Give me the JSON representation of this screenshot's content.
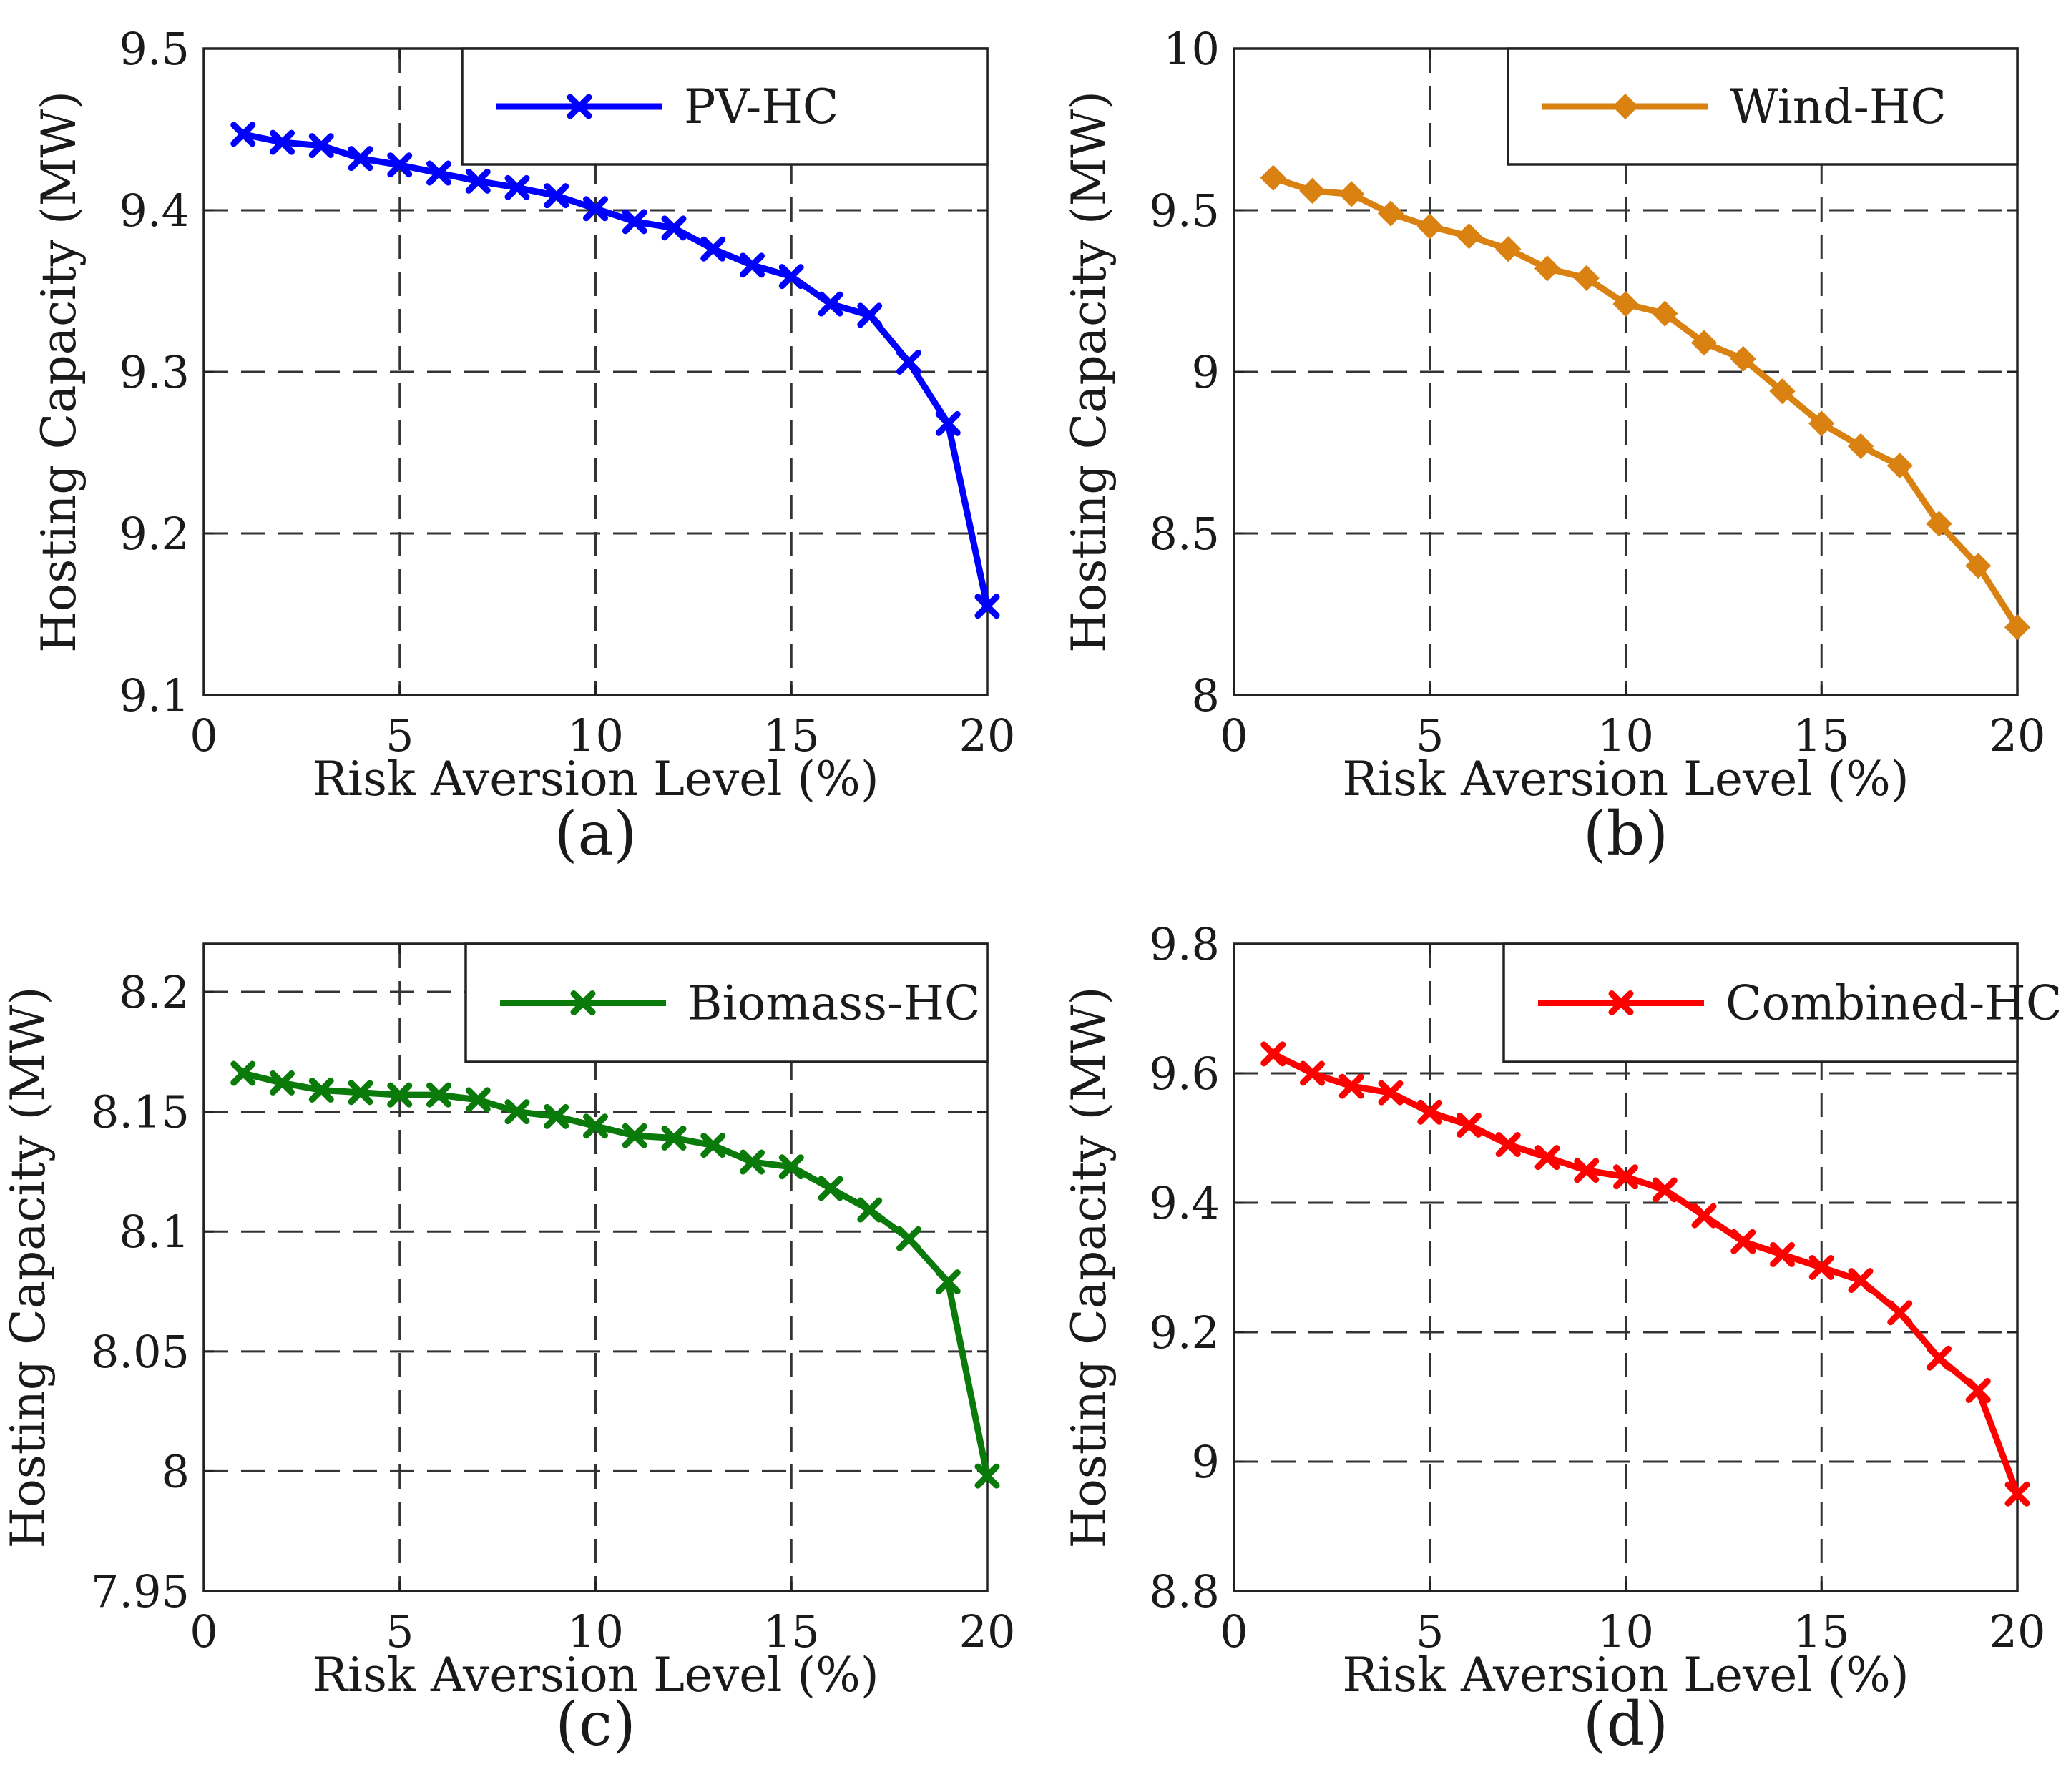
{
  "chart_data": [
    {
      "id": "a",
      "type": "line",
      "panel_label": "(a)",
      "xlabel": "Risk Aversion Level (%)",
      "ylabel": "Hosting Capacity (MW)",
      "xlim": [
        0,
        20
      ],
      "ylim": [
        9.1,
        9.5
      ],
      "xticks": [
        0,
        5,
        10,
        15,
        20
      ],
      "xtick_labels": [
        "0",
        "5",
        "10",
        "15",
        "20"
      ],
      "yticks": [
        9.1,
        9.2,
        9.3,
        9.4,
        9.5
      ],
      "ytick_labels": [
        "9.1",
        "9.2",
        "9.3",
        "9.4",
        "9.5"
      ],
      "grid": true,
      "legend_position": "top-right",
      "series": [
        {
          "name": "PV-HC",
          "color": "#0000ff",
          "marker": "x",
          "x": [
            1,
            2,
            3,
            4,
            5,
            6,
            7,
            8,
            9,
            10,
            11,
            12,
            13,
            14,
            15,
            16,
            17,
            18,
            19,
            20
          ],
          "y": [
            9.447,
            9.442,
            9.44,
            9.432,
            9.428,
            9.423,
            9.418,
            9.414,
            9.409,
            9.401,
            9.393,
            9.389,
            9.376,
            9.366,
            9.359,
            9.342,
            9.335,
            9.306,
            9.268,
            9.155
          ]
        }
      ]
    },
    {
      "id": "b",
      "type": "line",
      "panel_label": "(b)",
      "xlabel": "Risk Aversion Level (%)",
      "ylabel": "Hosting Capacity (MW)",
      "xlim": [
        0,
        20
      ],
      "ylim": [
        8,
        10
      ],
      "xticks": [
        0,
        5,
        10,
        15,
        20
      ],
      "xtick_labels": [
        "0",
        "5",
        "10",
        "15",
        "20"
      ],
      "yticks": [
        8,
        8.5,
        9,
        9.5,
        10
      ],
      "ytick_labels": [
        "8",
        "8.5",
        "9",
        "9.5",
        "10"
      ],
      "grid": true,
      "legend_position": "top-right",
      "series": [
        {
          "name": "Wind-HC",
          "color": "#d98212",
          "marker": "diamond",
          "x": [
            1,
            2,
            3,
            4,
            5,
            6,
            7,
            8,
            9,
            10,
            11,
            12,
            13,
            14,
            15,
            16,
            17,
            18,
            19,
            20
          ],
          "y": [
            9.6,
            9.56,
            9.55,
            9.49,
            9.45,
            9.42,
            9.38,
            9.32,
            9.29,
            9.21,
            9.18,
            9.09,
            9.04,
            8.94,
            8.84,
            8.77,
            8.71,
            8.53,
            8.4,
            8.21
          ]
        }
      ]
    },
    {
      "id": "c",
      "type": "line",
      "panel_label": "(c)",
      "xlabel": "Risk Aversion Level (%)",
      "ylabel": "Hosting Capacity (MW)",
      "xlim": [
        0,
        20
      ],
      "ylim": [
        7.95,
        8.22
      ],
      "xticks": [
        0,
        5,
        10,
        15,
        20
      ],
      "xtick_labels": [
        "0",
        "5",
        "10",
        "15",
        "20"
      ],
      "yticks": [
        7.95,
        8,
        8.05,
        8.1,
        8.15,
        8.2
      ],
      "ytick_labels": [
        "7.95",
        "8",
        "8.05",
        "8.1",
        "8.15",
        "8.2"
      ],
      "grid": true,
      "legend_position": "top-right",
      "series": [
        {
          "name": "Biomass-HC",
          "color": "#0a7a0a",
          "marker": "x",
          "x": [
            1,
            2,
            3,
            4,
            5,
            6,
            7,
            8,
            9,
            10,
            11,
            12,
            13,
            14,
            15,
            16,
            17,
            18,
            19,
            20
          ],
          "y": [
            8.166,
            8.162,
            8.159,
            8.158,
            8.157,
            8.157,
            8.155,
            8.15,
            8.148,
            8.144,
            8.14,
            8.139,
            8.136,
            8.129,
            8.127,
            8.118,
            8.109,
            8.097,
            8.079,
            7.998
          ]
        }
      ]
    },
    {
      "id": "d",
      "type": "line",
      "panel_label": "(d)",
      "xlabel": "Risk Aversion Level (%)",
      "ylabel": "Hosting Capacity (MW)",
      "xlim": [
        0,
        20
      ],
      "ylim": [
        8.8,
        9.8
      ],
      "xticks": [
        0,
        5,
        10,
        15,
        20
      ],
      "xtick_labels": [
        "0",
        "5",
        "10",
        "15",
        "20"
      ],
      "yticks": [
        8.8,
        9,
        9.2,
        9.4,
        9.6,
        9.8
      ],
      "ytick_labels": [
        "8.8",
        "9",
        "9.2",
        "9.4",
        "9.6",
        "9.8"
      ],
      "grid": true,
      "legend_position": "top-right",
      "series": [
        {
          "name": "Combined-HC",
          "color": "#ff0000",
          "marker": "x",
          "x": [
            1,
            2,
            3,
            4,
            5,
            6,
            7,
            8,
            9,
            10,
            11,
            12,
            13,
            14,
            15,
            16,
            17,
            18,
            19,
            20
          ],
          "y": [
            9.63,
            9.6,
            9.58,
            9.57,
            9.54,
            9.52,
            9.49,
            9.47,
            9.45,
            9.44,
            9.42,
            9.38,
            9.34,
            9.32,
            9.3,
            9.28,
            9.23,
            9.16,
            9.11,
            8.95
          ]
        }
      ]
    }
  ]
}
